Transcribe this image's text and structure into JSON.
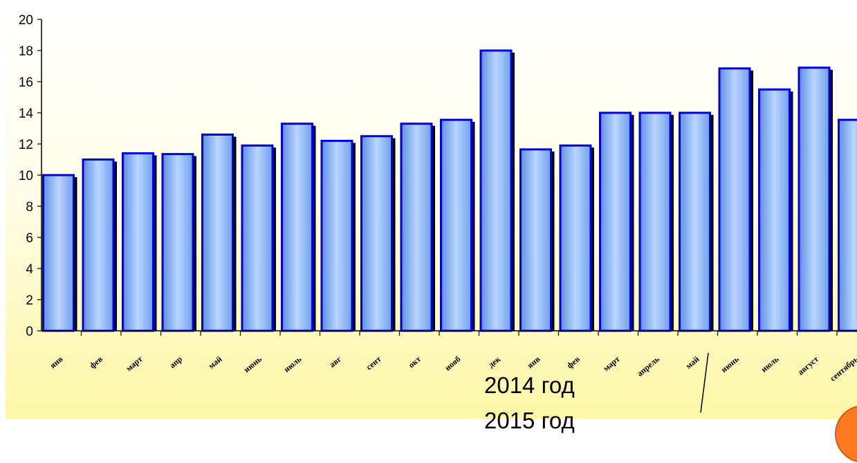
{
  "chart_data": {
    "type": "bar",
    "categories": [
      "янв",
      "фев",
      "март",
      "апр",
      "май",
      "июнь",
      "июль",
      "авг",
      "сент",
      "окт",
      "нояб",
      "дек",
      "янв",
      "фев",
      "март",
      "апрель",
      "май",
      "июнь",
      "июль",
      "август",
      "сентябрь"
    ],
    "values": [
      10,
      11,
      11.4,
      11.35,
      12.6,
      11.9,
      13.3,
      12.2,
      12.5,
      13.3,
      13.55,
      18,
      11.65,
      11.9,
      14,
      14,
      14,
      16.85,
      15.5,
      16.9,
      13.55
    ],
    "ylim": [
      0,
      20
    ],
    "yticks": [
      "0",
      "2",
      "4",
      "6",
      "8",
      "10",
      "12",
      "14",
      "16",
      "18",
      "20"
    ],
    "grid": false,
    "bar_color": "#8fbfff",
    "bar_border_color": "#0000e0",
    "shadow_color": "#000000"
  },
  "annotations": {
    "year_2014": "2014 год",
    "year_2015": "2015 год"
  },
  "colors": {
    "background_top": "#ffffff",
    "background_bottom": "#fdf7a6",
    "accent_circle": "#ff7a1f"
  }
}
